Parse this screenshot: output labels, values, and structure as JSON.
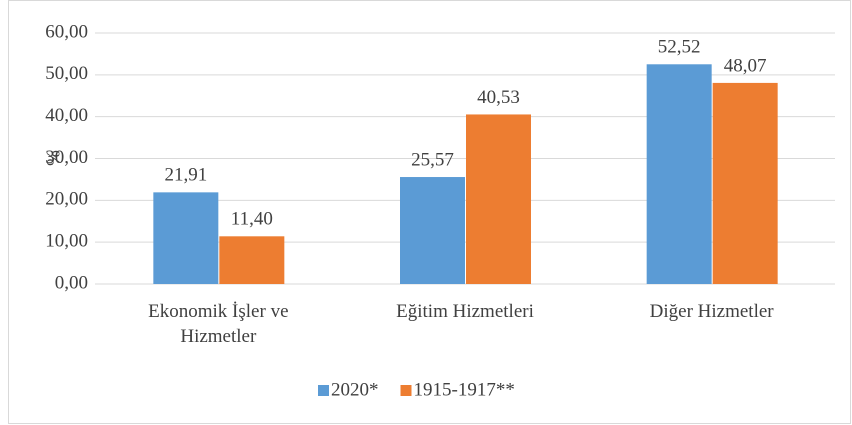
{
  "chart_data": {
    "type": "bar",
    "y_label": "%",
    "categories": [
      "Ekonomik İşler ve Hizmetler",
      "Eğitim Hizmetleri",
      "Diğer Hizmetler"
    ],
    "series": [
      {
        "name": "2020*",
        "color": "#5b9bd5",
        "values": [
          21.91,
          25.57,
          52.52
        ],
        "value_labels": [
          "21,91",
          "25,57",
          "52,52"
        ]
      },
      {
        "name": "1915-1917**",
        "color": "#ed7d31",
        "values": [
          11.4,
          40.53,
          48.07
        ],
        "value_labels": [
          "11,40",
          "40,53",
          "48,07"
        ]
      }
    ],
    "ylim": [
      0,
      60
    ],
    "yticks": [
      {
        "value": 0,
        "label": "0,00"
      },
      {
        "value": 10,
        "label": "10,00"
      },
      {
        "value": 20,
        "label": "20,00"
      },
      {
        "value": 30,
        "label": "30,00"
      },
      {
        "value": 40,
        "label": "40,00"
      },
      {
        "value": 50,
        "label": "50,00"
      },
      {
        "value": 60,
        "label": "60,00"
      }
    ],
    "grid": true,
    "legend": "bottom"
  }
}
